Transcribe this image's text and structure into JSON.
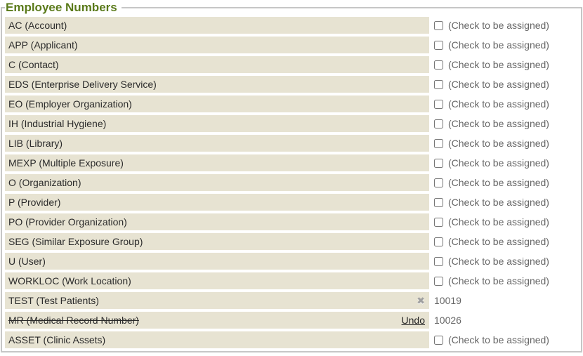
{
  "section": {
    "title": "Employee Numbers"
  },
  "assign_hint": "(Check to be assigned)",
  "icons": {
    "remove_x": "✖"
  },
  "colors": {
    "legend_green": "#5a7a1a",
    "row_bg": "#e7e3d2",
    "muted_text": "#666666",
    "label_text": "#2b2b2b",
    "border": "#c6c6c6"
  },
  "rows": [
    {
      "label": "AC (Account)",
      "kind": "unassigned"
    },
    {
      "label": "APP (Applicant)",
      "kind": "unassigned"
    },
    {
      "label": "C (Contact)",
      "kind": "unassigned"
    },
    {
      "label": "EDS (Enterprise Delivery Service)",
      "kind": "unassigned"
    },
    {
      "label": "EO (Employer Organization)",
      "kind": "unassigned"
    },
    {
      "label": "IH (Industrial Hygiene)",
      "kind": "unassigned"
    },
    {
      "label": "LIB (Library)",
      "kind": "unassigned"
    },
    {
      "label": "MEXP (Multiple Exposure)",
      "kind": "unassigned"
    },
    {
      "label": "O (Organization)",
      "kind": "unassigned"
    },
    {
      "label": "P (Provider)",
      "kind": "unassigned"
    },
    {
      "label": "PO (Provider Organization)",
      "kind": "unassigned"
    },
    {
      "label": "SEG (Similar Exposure Group)",
      "kind": "unassigned"
    },
    {
      "label": "U (User)",
      "kind": "unassigned"
    },
    {
      "label": "WORKLOC (Work Location)",
      "kind": "unassigned"
    },
    {
      "label": "TEST (Test Patients)",
      "kind": "assigned",
      "number": "10019"
    },
    {
      "label": "MR (Medical Record Number)",
      "kind": "removed",
      "number": "10026",
      "undo_label": "Undo"
    },
    {
      "label": "ASSET (Clinic Assets)",
      "kind": "unassigned"
    }
  ]
}
